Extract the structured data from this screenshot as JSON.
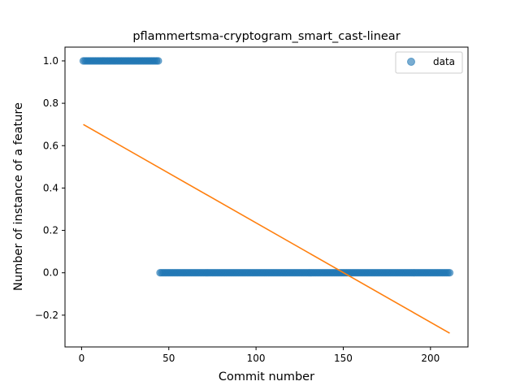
{
  "chart_data": {
    "type": "scatter",
    "title": "pflammertsma-cryptogram_smart_cast-linear",
    "xlabel": "Commit number",
    "ylabel": "Number of instance of a feature",
    "xlim": [
      -9.5,
      221.5
    ],
    "ylim": [
      -0.35,
      1.065
    ],
    "xticks": [
      0,
      50,
      100,
      150,
      200
    ],
    "xtick_labels": [
      "0",
      "50",
      "100",
      "150",
      "200"
    ],
    "yticks": [
      -0.2,
      0.0,
      0.2,
      0.4,
      0.6,
      0.8,
      1.0
    ],
    "ytick_labels": [
      "−0.2",
      "0.0",
      "0.2",
      "0.4",
      "0.6",
      "0.8",
      "1.0"
    ],
    "grid": false,
    "legend": {
      "position": "top-right",
      "entries": [
        "data"
      ]
    },
    "series": [
      {
        "name": "data",
        "kind": "scatter",
        "color": "#1f77b4",
        "alpha": 0.6,
        "segments": [
          {
            "x_from": 1,
            "x_to": 44,
            "y": 1
          },
          {
            "x_from": 45,
            "x_to": 211,
            "y": 0
          }
        ]
      },
      {
        "kind": "line",
        "color": "#ff7f0e",
        "x": [
          1,
          211
        ],
        "y": [
          0.7,
          -0.285
        ]
      }
    ]
  }
}
